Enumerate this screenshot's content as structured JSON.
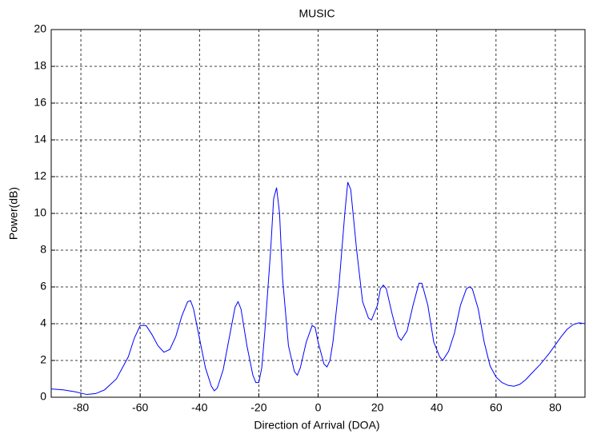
{
  "chart_data": {
    "type": "line",
    "title": "MUSIC",
    "x_label": "Direction of Arrival (DOA)",
    "y_label": "Power(dB)",
    "color": "#0000ff",
    "grid": true,
    "xlim": [
      -90,
      90
    ],
    "ylim": [
      0,
      20
    ],
    "xticks": [
      -80,
      -60,
      -40,
      -20,
      0,
      20,
      40,
      60,
      80
    ],
    "yticks": [
      0,
      2,
      4,
      6,
      8,
      10,
      12,
      14,
      16,
      18,
      20
    ],
    "x": [
      -90,
      -86,
      -82,
      -78,
      -75,
      -72,
      -68,
      -64,
      -62,
      -60,
      -58,
      -56,
      -54,
      -52,
      -50,
      -48,
      -46,
      -44,
      -43,
      -42,
      -40,
      -38,
      -36,
      -35,
      -34,
      -32,
      -30,
      -28,
      -27,
      -26,
      -24,
      -22,
      -21,
      -20,
      -19,
      -18,
      -16,
      -15,
      -14,
      -13,
      -12,
      -10,
      -8,
      -7,
      -6,
      -4,
      -2,
      -1,
      0,
      2,
      3,
      4,
      5,
      7,
      9,
      10,
      11,
      13,
      15,
      17,
      18,
      20,
      21,
      22,
      23,
      25,
      27,
      28,
      30,
      32,
      34,
      35,
      37,
      39,
      41,
      42,
      44,
      46,
      48,
      50,
      51,
      52,
      54,
      56,
      58,
      60,
      62,
      64,
      66,
      68,
      70,
      72,
      75,
      78,
      80,
      82,
      84,
      86,
      88,
      90
    ],
    "values": [
      0.45,
      0.4,
      0.3,
      0.15,
      0.2,
      0.4,
      1.0,
      2.2,
      3.2,
      3.9,
      3.9,
      3.4,
      2.8,
      2.45,
      2.6,
      3.3,
      4.4,
      5.2,
      5.25,
      4.8,
      3.2,
      1.6,
      0.6,
      0.35,
      0.5,
      1.5,
      3.2,
      4.9,
      5.2,
      4.8,
      2.8,
      1.2,
      0.8,
      0.8,
      1.6,
      3.5,
      8.0,
      10.8,
      11.4,
      10.0,
      6.5,
      2.8,
      1.4,
      1.2,
      1.6,
      3.0,
      3.9,
      3.8,
      3.0,
      1.8,
      1.65,
      2.0,
      3.0,
      6.0,
      10.0,
      11.7,
      11.3,
      8.0,
      5.2,
      4.3,
      4.2,
      5.0,
      5.9,
      6.1,
      5.9,
      4.5,
      3.3,
      3.1,
      3.6,
      5.0,
      6.2,
      6.2,
      5.0,
      3.0,
      2.2,
      2.0,
      2.5,
      3.5,
      5.0,
      5.9,
      6.0,
      5.9,
      4.8,
      3.0,
      1.7,
      1.1,
      0.8,
      0.65,
      0.6,
      0.7,
      0.95,
      1.3,
      1.8,
      2.4,
      2.85,
      3.3,
      3.7,
      3.95,
      4.05,
      4.0
    ]
  }
}
